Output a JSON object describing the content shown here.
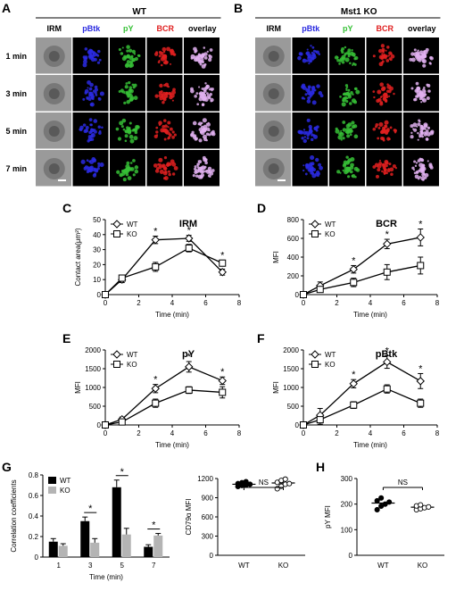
{
  "panel_letters": [
    "A",
    "B",
    "C",
    "D",
    "E",
    "F",
    "G",
    "H"
  ],
  "panel_a": {
    "group": "WT",
    "columns": [
      "IRM",
      "pBtk",
      "pY",
      "BCR",
      "overlay"
    ],
    "rows": [
      "1 min",
      "3 min",
      "5 min",
      "7 min"
    ]
  },
  "panel_b": {
    "group": "Mst1  KO",
    "columns": [
      "IRM",
      "pBtk",
      "pY",
      "BCR",
      "overlay"
    ],
    "rows": [
      "1 min",
      "3 min",
      "5 min",
      "7 min"
    ]
  },
  "colors": {
    "irm": "#8a8a8a",
    "pbtk": "#2a2ae0",
    "py": "#36c036",
    "bcr": "#e02020",
    "overlay": "#e0b0f0",
    "black": "#000000",
    "grey_bar": "#b4b4b4"
  },
  "chart_data": [
    {
      "panel": "C",
      "type": "line",
      "title": "IRM",
      "xlabel": "Time (min)",
      "ylabel": "Contact area(μm²)",
      "x": [
        0,
        1,
        3,
        5,
        7
      ],
      "xticks": [
        "0",
        "2",
        "4",
        "6",
        "8"
      ],
      "yticks": [
        "0",
        "10",
        "20",
        "30",
        "40",
        "50"
      ],
      "xlim": [
        0,
        8
      ],
      "ylim": [
        0,
        50
      ],
      "series": [
        {
          "name": "WT",
          "marker": "diamond",
          "values": [
            0,
            10,
            36.5,
            37.5,
            15
          ],
          "err": [
            0,
            2,
            2.5,
            2,
            2
          ]
        },
        {
          "name": "KO",
          "marker": "square",
          "values": [
            0,
            11,
            18.5,
            31,
            21
          ],
          "err": [
            0,
            2,
            3,
            2.5,
            2
          ]
        }
      ],
      "stars_x": [
        3,
        5,
        7
      ]
    },
    {
      "panel": "D",
      "type": "line",
      "title": "BCR",
      "xlabel": "Time (min)",
      "ylabel": "MFI",
      "x": [
        0,
        1,
        3,
        5,
        7
      ],
      "xticks": [
        "0",
        "2",
        "4",
        "6",
        "8"
      ],
      "yticks": [
        "0",
        "200",
        "400",
        "600",
        "800"
      ],
      "xlim": [
        0,
        8
      ],
      "ylim": [
        0,
        800
      ],
      "series": [
        {
          "name": "WT",
          "marker": "diamond",
          "values": [
            0,
            95,
            270,
            540,
            610
          ],
          "err": [
            0,
            40,
            40,
            50,
            90
          ]
        },
        {
          "name": "KO",
          "marker": "square",
          "values": [
            0,
            55,
            130,
            240,
            310
          ],
          "err": [
            0,
            30,
            45,
            80,
            90
          ]
        }
      ],
      "stars_x": [
        3,
        5,
        7
      ]
    },
    {
      "panel": "E",
      "type": "line",
      "title": "pY",
      "xlabel": "Time (min)",
      "ylabel": "MFI",
      "x": [
        0,
        1,
        3,
        5,
        7
      ],
      "xticks": [
        "0",
        "2",
        "4",
        "6",
        "8"
      ],
      "yticks": [
        "0",
        "500",
        "1000",
        "1500",
        "2000"
      ],
      "xlim": [
        0,
        8
      ],
      "ylim": [
        0,
        2000
      ],
      "series": [
        {
          "name": "WT",
          "marker": "diamond",
          "values": [
            0,
            150,
            970,
            1550,
            1180
          ],
          "err": [
            0,
            60,
            110,
            140,
            100
          ]
        },
        {
          "name": "KO",
          "marker": "square",
          "values": [
            0,
            80,
            580,
            930,
            870
          ],
          "err": [
            0,
            50,
            110,
            90,
            150
          ]
        }
      ],
      "stars_x": [
        3,
        5,
        7
      ]
    },
    {
      "panel": "F",
      "type": "line",
      "title": "pBtk",
      "xlabel": "Time (min)",
      "ylabel": "MFI",
      "x": [
        0,
        1,
        3,
        5,
        7
      ],
      "xticks": [
        "0",
        "2",
        "4",
        "6",
        "8"
      ],
      "yticks": [
        "0",
        "500",
        "1000",
        "1500",
        "2000"
      ],
      "xlim": [
        0,
        8
      ],
      "ylim": [
        0,
        2000
      ],
      "series": [
        {
          "name": "WT",
          "marker": "diamond",
          "values": [
            0,
            260,
            1100,
            1680,
            1170
          ],
          "err": [
            0,
            180,
            110,
            170,
            200
          ]
        },
        {
          "name": "KO",
          "marker": "square",
          "values": [
            0,
            140,
            530,
            960,
            580
          ],
          "err": [
            0,
            120,
            90,
            110,
            110
          ]
        }
      ],
      "stars_x": [
        3,
        5,
        7
      ]
    },
    {
      "panel": "G",
      "type": "bar",
      "xlabel": "Time (min)",
      "ylabel": "Correlation coefficients",
      "categories": [
        "1",
        "3",
        "5",
        "7"
      ],
      "yticks": [
        "0",
        "0.2",
        "0.4",
        "0.6",
        "0.8"
      ],
      "ylim": [
        0,
        0.8
      ],
      "series": [
        {
          "name": "WT",
          "values": [
            0.15,
            0.35,
            0.68,
            0.1
          ],
          "err": [
            0.03,
            0.04,
            0.07,
            0.02
          ]
        },
        {
          "name": "KO",
          "values": [
            0.11,
            0.14,
            0.22,
            0.21
          ],
          "err": [
            0.02,
            0.04,
            0.06,
            0.02
          ]
        }
      ],
      "stars": [
        "3",
        "5",
        "7"
      ]
    },
    {
      "panel": "G2",
      "type": "scatter",
      "ylabel": "CD79α MFI",
      "categories": [
        "WT",
        "KO"
      ],
      "yticks": [
        "0",
        "300",
        "600",
        "900",
        "1200"
      ],
      "ylim": [
        0,
        1200
      ],
      "series": [
        {
          "name": "WT",
          "filled": true,
          "values": [
            1075,
            1090,
            1100,
            1110,
            1120,
            1135,
            1150
          ],
          "mean": 1110
        },
        {
          "name": "KO",
          "filled": false,
          "values": [
            1040,
            1080,
            1110,
            1120,
            1140,
            1170,
            1190
          ],
          "mean": 1130
        }
      ],
      "annotation": "NS"
    },
    {
      "panel": "H",
      "type": "scatter",
      "ylabel": "pY MFI",
      "categories": [
        "WT",
        "KO"
      ],
      "yticks": [
        "0",
        "100",
        "200",
        "300"
      ],
      "ylim": [
        0,
        300
      ],
      "series": [
        {
          "name": "WT",
          "filled": true,
          "values": [
            178,
            192,
            200,
            208,
            213,
            224
          ],
          "mean": 204
        },
        {
          "name": "KO",
          "filled": false,
          "values": [
            178,
            182,
            186,
            189,
            193,
            197
          ],
          "mean": 188
        }
      ],
      "annotation": "NS"
    }
  ]
}
